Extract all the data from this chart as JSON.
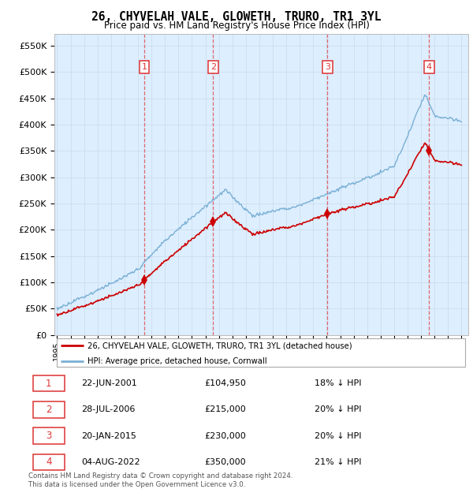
{
  "title": "26, CHYVELAH VALE, GLOWETH, TRURO, TR1 3YL",
  "subtitle": "Price paid vs. HM Land Registry's House Price Index (HPI)",
  "yticks": [
    0,
    50000,
    100000,
    150000,
    200000,
    250000,
    300000,
    350000,
    400000,
    450000,
    500000,
    550000
  ],
  "ytick_labels": [
    "£0",
    "£50K",
    "£100K",
    "£150K",
    "£200K",
    "£250K",
    "£300K",
    "£350K",
    "£400K",
    "£450K",
    "£500K",
    "£550K"
  ],
  "xlim_start": 1994.8,
  "xlim_end": 2025.5,
  "ylim_min": 0,
  "ylim_max": 572000,
  "sale_dates": [
    2001.47,
    2006.57,
    2015.05,
    2022.59
  ],
  "sale_prices": [
    104950,
    215000,
    230000,
    350000
  ],
  "sale_labels": [
    "1",
    "2",
    "3",
    "4"
  ],
  "legend_house_label": "26, CHYVELAH VALE, GLOWETH, TRURO, TR1 3YL (detached house)",
  "legend_hpi_label": "HPI: Average price, detached house, Cornwall",
  "table_rows": [
    {
      "num": "1",
      "date": "22-JUN-2001",
      "price": "£104,950",
      "pct": "18% ↓ HPI"
    },
    {
      "num": "2",
      "date": "28-JUL-2006",
      "price": "£215,000",
      "pct": "20% ↓ HPI"
    },
    {
      "num": "3",
      "date": "20-JAN-2015",
      "price": "£230,000",
      "pct": "20% ↓ HPI"
    },
    {
      "num": "4",
      "date": "04-AUG-2022",
      "price": "£350,000",
      "pct": "21% ↓ HPI"
    }
  ],
  "footnote": "Contains HM Land Registry data © Crown copyright and database right 2024.\nThis data is licensed under the Open Government Licence v3.0.",
  "house_color": "#cc0000",
  "hpi_color": "#7ab0d4",
  "vline_color": "#e05050",
  "grid_color": "#ccddee",
  "background_color": "#ddeeff",
  "label_box_color": "#dd3333"
}
